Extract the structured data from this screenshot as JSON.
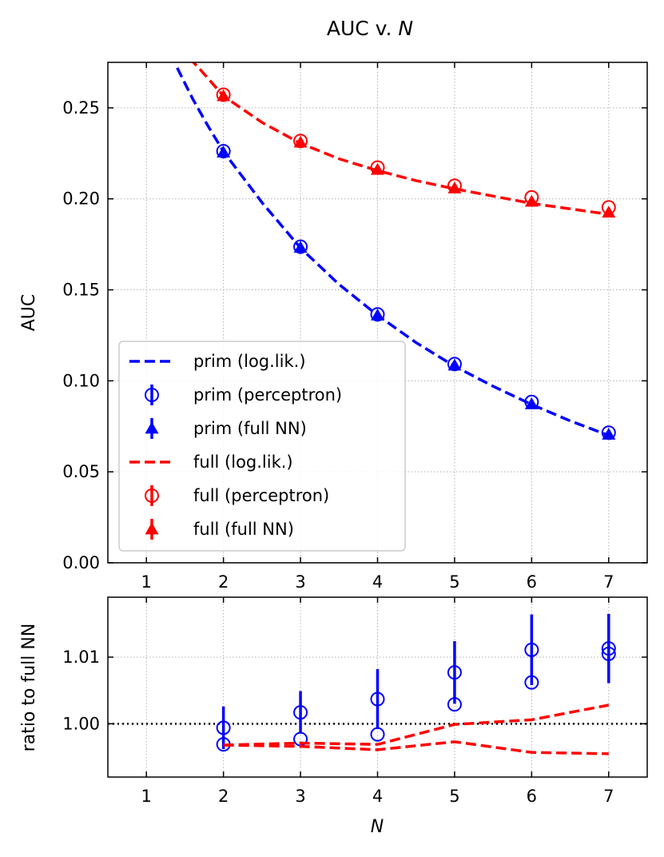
{
  "chart_data": [
    {
      "type": "line",
      "title_prefix": "AUC v. ",
      "title_var": "N",
      "xlabel": "",
      "ylabel": "AUC",
      "xlim": [
        0.5,
        7.5
      ],
      "ylim": [
        0.0,
        0.275
      ],
      "xticks": [
        1,
        2,
        3,
        4,
        5,
        6,
        7
      ],
      "yticks": [
        0.0,
        0.05,
        0.1,
        0.15,
        0.2,
        0.25
      ],
      "ytick_labels": [
        "0.00",
        "0.05",
        "0.10",
        "0.15",
        "0.20",
        "0.25"
      ],
      "grid": true,
      "legend_position": "lower-left",
      "series": [
        {
          "name": "prim (log.lik.)",
          "kind": "dashed-line",
          "color": "#0000ff",
          "x": [
            1.4,
            1.6,
            1.8,
            2,
            2.5,
            3,
            3.5,
            4,
            4.5,
            5,
            5.5,
            6,
            6.5,
            7
          ],
          "y": [
            0.272,
            0.255,
            0.24,
            0.226,
            0.198,
            0.173,
            0.153,
            0.136,
            0.121,
            0.108,
            0.097,
            0.087,
            0.078,
            0.07
          ]
        },
        {
          "name": "prim (perceptron)",
          "kind": "open-circle-errorbar",
          "color": "#0000ff",
          "x": [
            2,
            3,
            4,
            5,
            6,
            7
          ],
          "y": [
            0.2262,
            0.1737,
            0.1365,
            0.1092,
            0.0884,
            0.0715
          ]
        },
        {
          "name": "prim (full NN)",
          "kind": "triangle-errorbar",
          "color": "#0000ff",
          "x": [
            2,
            3,
            4,
            5,
            6,
            7
          ],
          "y": [
            0.2255,
            0.1732,
            0.136,
            0.1085,
            0.0872,
            0.0705
          ]
        },
        {
          "name": "full (log.lik.)",
          "kind": "dashed-line",
          "color": "#ff0000",
          "x": [
            1.3,
            1.5,
            1.7,
            2,
            2.5,
            3,
            3.5,
            4,
            4.5,
            5,
            5.5,
            6,
            6.5,
            7
          ],
          "y": [
            0.29,
            0.28,
            0.271,
            0.2565,
            0.242,
            0.2305,
            0.222,
            0.2155,
            0.21,
            0.2055,
            0.2015,
            0.1975,
            0.1945,
            0.1915
          ]
        },
        {
          "name": "full (perceptron)",
          "kind": "open-circle-errorbar",
          "color": "#ff0000",
          "x": [
            2,
            3,
            4,
            5,
            6,
            7
          ],
          "y": [
            0.2572,
            0.2318,
            0.2172,
            0.2072,
            0.2008,
            0.1953
          ]
        },
        {
          "name": "full (full NN)",
          "kind": "triangle-errorbar",
          "color": "#ff0000",
          "x": [
            2,
            3,
            4,
            5,
            6,
            7
          ],
          "y": [
            0.2565,
            0.231,
            0.216,
            0.2058,
            0.1985,
            0.1925
          ]
        }
      ]
    },
    {
      "type": "line",
      "xlabel": "N",
      "ylabel": "ratio to full NN",
      "xlim": [
        0.5,
        7.5
      ],
      "ylim": [
        0.992,
        1.019
      ],
      "xticks": [
        1,
        2,
        3,
        4,
        5,
        6,
        7
      ],
      "yticks": [
        1.0,
        1.01
      ],
      "ytick_labels": [
        "1.00",
        "1.01"
      ],
      "grid": true,
      "reference_line": 1.0,
      "series": [
        {
          "name": "prim (perceptron) / prim (full NN)",
          "kind": "open-circle-errorbar",
          "color": "#0000ff",
          "x": [
            2,
            3,
            4,
            5,
            6,
            7
          ],
          "y": [
            0.9994,
            1.0017,
            1.0037,
            1.0077,
            1.0111,
            1.0113
          ],
          "err": [
            0.0032,
            0.0032,
            0.0045,
            0.0047,
            0.0053,
            0.0052
          ]
        },
        {
          "name": "prim (log.lik.) / prim (full NN)",
          "kind": "open-circle",
          "color": "#0000ff",
          "x": [
            2,
            3,
            4,
            5,
            6
          ],
          "y": [
            0.9969,
            0.9977,
            0.9984,
            1.0029,
            1.0062
          ]
        },
        {
          "name": "prim (log.lik.) / prim (full NN) #2",
          "kind": "open-circle",
          "color": "#0000ff",
          "x": [
            7
          ],
          "y": [
            1.0105
          ]
        },
        {
          "name": "prim (log.lik.) ratio",
          "kind": "dashed-line",
          "color": "#ff0000",
          "x": [
            2,
            3,
            4,
            5,
            6,
            7
          ],
          "y": [
            0.9968,
            0.9971,
            0.9969,
            0.9999,
            1.0006,
            1.0028
          ]
        },
        {
          "name": "full (log.lik.) ratio",
          "kind": "dashed-line",
          "color": "#ff0000",
          "x": [
            2,
            3,
            4,
            5,
            6,
            7
          ],
          "y": [
            0.9968,
            0.9966,
            0.9961,
            0.9973,
            0.9957,
            0.9955
          ]
        }
      ]
    }
  ]
}
